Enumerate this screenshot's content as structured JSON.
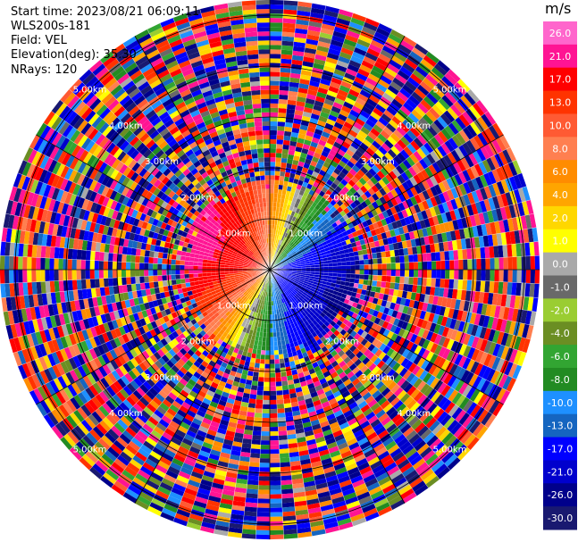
{
  "header": {
    "start_time": "Start time: 2023/08/21 06:09:11",
    "instrument": "WLS200s-181",
    "field": "Field: VEL",
    "elevation": "Elevation(deg): 35.30",
    "nrays": "NRays: 120"
  },
  "chart_data": {
    "type": "heatmap",
    "projection": "polar-ppi",
    "n_rays": 120,
    "range_rings": [
      {
        "label": "1.00km",
        "range_km": 1.0
      },
      {
        "label": "2.00km",
        "range_km": 2.0
      },
      {
        "label": "3.00km",
        "range_km": 3.0
      },
      {
        "label": "4.00km",
        "range_km": 4.0
      },
      {
        "label": "5.00km",
        "range_km": 5.0
      }
    ],
    "max_range_km": 5.3,
    "clean_echo_range_km": [
      0.0,
      1.8
    ],
    "velocity_pattern": {
      "max_positive_bearing_deg": 292,
      "max_negative_bearing_deg": 112,
      "amplitude_ms": 22
    },
    "colorbar": {
      "title": "m/s",
      "ticks": [
        "26.0",
        "21.0",
        "17.0",
        "13.0",
        "10.0",
        "8.0",
        "6.0",
        "4.0",
        "2.0",
        "1.0",
        "0.0",
        "-1.0",
        "-2.0",
        "-4.0",
        "-6.0",
        "-8.0",
        "-10.0",
        "-13.0",
        "-17.0",
        "-21.0",
        "-26.0",
        "-30.0"
      ],
      "levels": [
        {
          "min": 26,
          "max": 30,
          "color": "#ff66cc"
        },
        {
          "min": 21,
          "max": 26,
          "color": "#ff1493"
        },
        {
          "min": 17,
          "max": 21,
          "color": "#ff0000"
        },
        {
          "min": 13,
          "max": 17,
          "color": "#ff3300"
        },
        {
          "min": 10,
          "max": 13,
          "color": "#ff5a33"
        },
        {
          "min": 8,
          "max": 10,
          "color": "#ff7f50"
        },
        {
          "min": 6,
          "max": 8,
          "color": "#ff8c00"
        },
        {
          "min": 4,
          "max": 6,
          "color": "#ffa500"
        },
        {
          "min": 2,
          "max": 4,
          "color": "#ffd700"
        },
        {
          "min": 1,
          "max": 2,
          "color": "#ffff00"
        },
        {
          "min": 0,
          "max": 1,
          "color": "#a9a9a9"
        },
        {
          "min": -1,
          "max": 0,
          "color": "#696969"
        },
        {
          "min": -2,
          "max": -1,
          "color": "#9acd32"
        },
        {
          "min": -4,
          "max": -2,
          "color": "#6b8e23"
        },
        {
          "min": -6,
          "max": -4,
          "color": "#32a532"
        },
        {
          "min": -8,
          "max": -6,
          "color": "#228b22"
        },
        {
          "min": -10,
          "max": -8,
          "color": "#1e90ff"
        },
        {
          "min": -13,
          "max": -10,
          "color": "#1565c0"
        },
        {
          "min": -17,
          "max": -13,
          "color": "#0000ff"
        },
        {
          "min": -21,
          "max": -17,
          "color": "#0000cd"
        },
        {
          "min": -26,
          "max": -21,
          "color": "#00008b"
        },
        {
          "min": -30,
          "max": -26,
          "color": "#191970"
        }
      ]
    }
  }
}
